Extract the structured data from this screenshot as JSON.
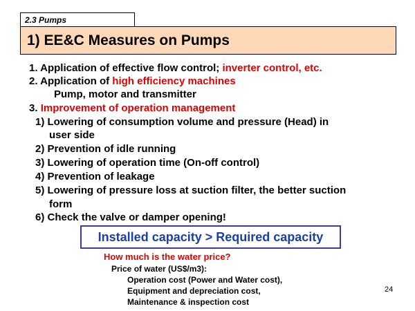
{
  "section_tab": "2.3  Pumps",
  "title": "1) EE&C Measures on Pumps",
  "items": [
    {
      "prefix": "1. Application of effective flow control; ",
      "highlight": "inverter control, etc."
    },
    {
      "prefix": "2. Application of ",
      "highlight": "high efficiency machines"
    },
    {
      "text": "Pump, motor and transmitter"
    },
    {
      "prefix": "3. ",
      "highlight": "Improvement of operation management"
    }
  ],
  "sub_items": [
    "1) Lowering of consumption volume and pressure (Head) in",
    "user side",
    "2) Prevention of idle running",
    "3) Lowering of operation time (On-off control)",
    "4) Prevention of leakage",
    "5) Lowering of pressure loss at suction filter, the better suction",
    "form",
    "6) Check the valve or damper opening!"
  ],
  "capacity_note": "Installed capacity > Required capacity",
  "water_price": {
    "question": "How much is the water price?",
    "label": "Price of water (US$/m3):",
    "details": [
      "Operation cost (Power and Water cost),",
      "Equipment and depreciation cost,",
      "Maintenance & inspection cost"
    ]
  },
  "page_number": "24"
}
